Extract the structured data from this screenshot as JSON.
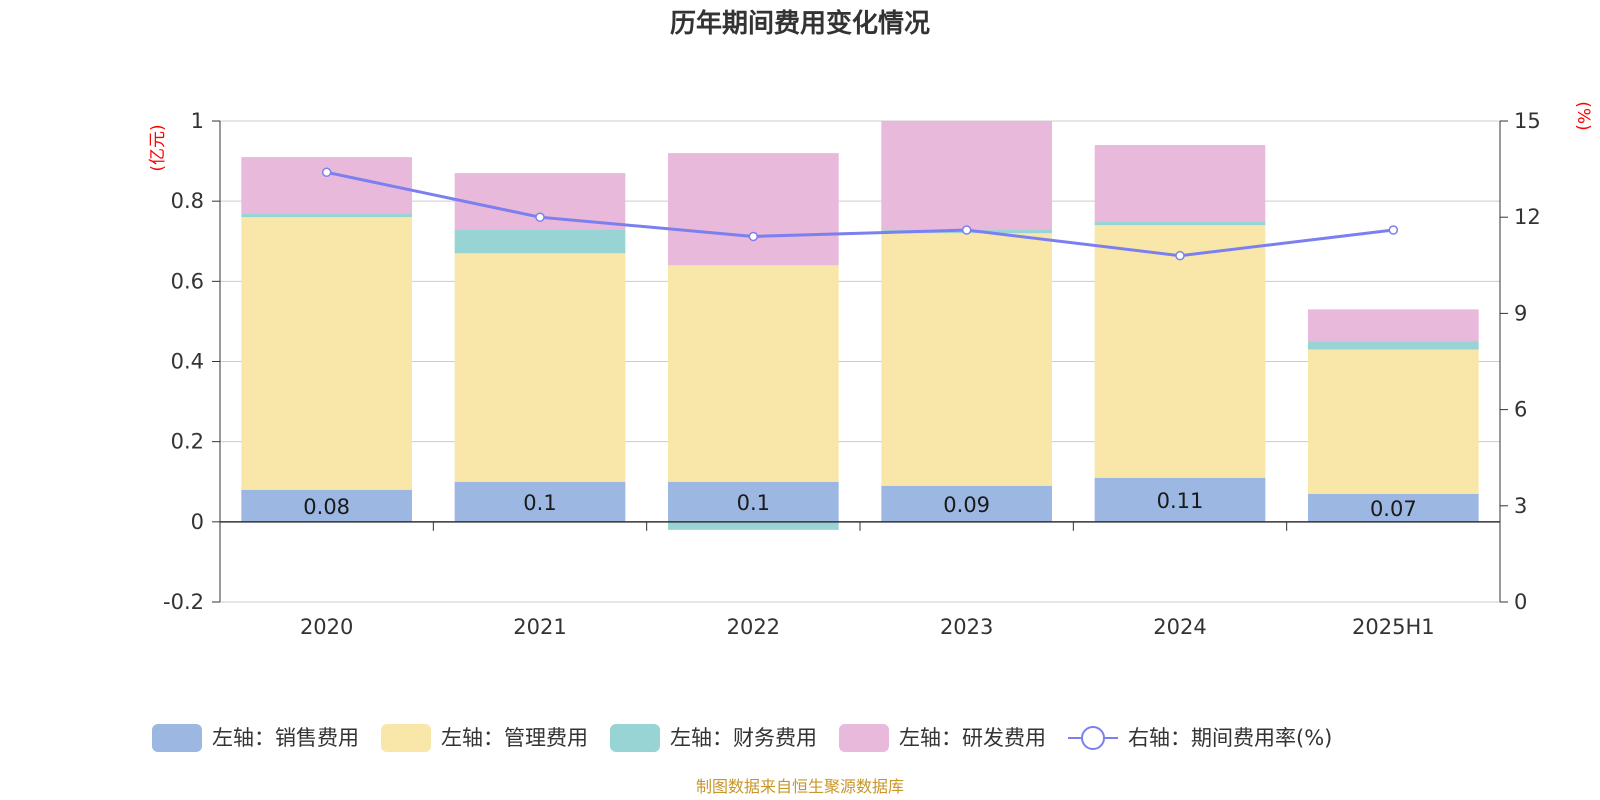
{
  "chart_data": {
    "type": "bar",
    "stacked": true,
    "title": "历年期间费用变化情况",
    "left_axis_unit": "(亿元)",
    "right_axis_unit": "(%)",
    "categories": [
      "2020",
      "2021",
      "2022",
      "2023",
      "2024",
      "2025H1"
    ],
    "left_ylim": [
      -0.2,
      1
    ],
    "left_yticks": [
      "-0.2",
      "0",
      "0.2",
      "0.4",
      "0.6",
      "0.8",
      "1"
    ],
    "left_ytick_values": [
      -0.2,
      0,
      0.2,
      0.4,
      0.6,
      0.8,
      1
    ],
    "right_ylim": [
      0,
      15
    ],
    "right_yticks": [
      "0",
      "3",
      "6",
      "9",
      "12",
      "15"
    ],
    "right_ytick_values": [
      0,
      3,
      6,
      9,
      12,
      15
    ],
    "series": [
      {
        "name": "左轴：销售费用",
        "axis": "left",
        "kind": "bar",
        "color": "#9bb7e2",
        "values": [
          0.08,
          0.1,
          0.1,
          0.09,
          0.11,
          0.07
        ],
        "labels": [
          "0.08",
          "0.1",
          "0.1",
          "0.09",
          "0.11",
          "0.07"
        ]
      },
      {
        "name": "左轴：管理费用",
        "axis": "left",
        "kind": "bar",
        "color": "#f8e7a8",
        "values": [
          0.68,
          0.57,
          0.54,
          0.63,
          0.63,
          0.36
        ]
      },
      {
        "name": "左轴：财务费用",
        "axis": "left",
        "kind": "bar",
        "color": "#98d4d4",
        "values": [
          0.01,
          0.06,
          -0.02,
          0.01,
          0.01,
          0.02
        ]
      },
      {
        "name": "左轴：研发费用",
        "axis": "left",
        "kind": "bar",
        "color": "#e8b9da",
        "values": [
          0.14,
          0.14,
          0.28,
          0.27,
          0.19,
          0.08
        ]
      },
      {
        "name": "右轴：期间费用率(%)",
        "axis": "right",
        "kind": "line",
        "color": "#7b7ff0",
        "values": [
          13.4,
          12.0,
          11.4,
          11.6,
          10.8,
          11.6
        ]
      }
    ],
    "grid": true,
    "legend_position": "bottom"
  },
  "source_note": "制图数据来自恒生聚源数据库"
}
